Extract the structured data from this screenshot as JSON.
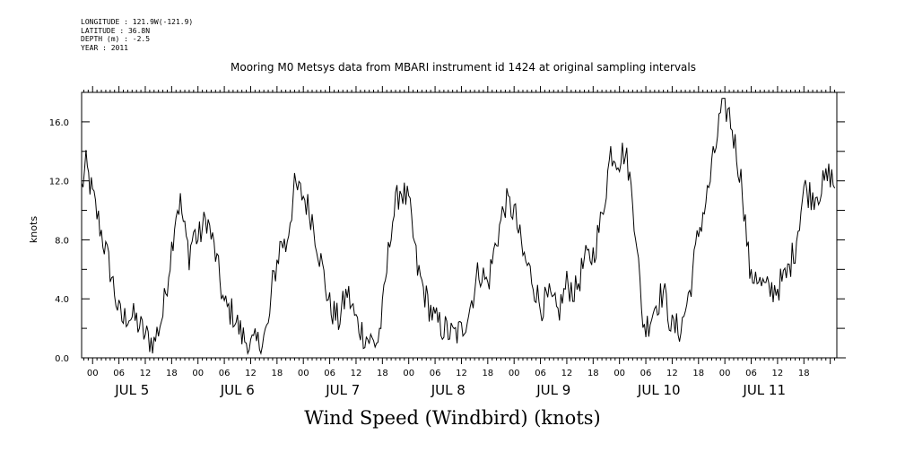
{
  "header": {
    "longitude": "LONGITUDE : 121.9W(-121.9)",
    "latitude": "LATITUDE : 36.8N",
    "depth": "DEPTH (m) : -2.5",
    "year": "YEAR : 2011"
  },
  "chart_data": {
    "type": "line",
    "title": "Mooring M0 Metsys data from MBARI instrument id 1424 at original sampling intervals",
    "xlabel": "Wind Speed (Windbird) (knots)",
    "ylabel": "knots",
    "ylim": [
      0,
      18
    ],
    "xlim": [
      -2.5,
      169.5
    ],
    "x_unit": "hours since JUL 5 00:00",
    "yticks": [
      0,
      4,
      8,
      12,
      16
    ],
    "ytick_labels": [
      "0.0",
      "4.0",
      "8.0",
      "12.0",
      "16.0"
    ],
    "hour_ticks": [
      0,
      6,
      12,
      18
    ],
    "hour_tick_labels": [
      "00",
      "06",
      "12",
      "18"
    ],
    "day_labels": [
      "JUL 5",
      "JUL 6",
      "JUL 7",
      "JUL 8",
      "JUL 9",
      "JUL 10",
      "JUL 11"
    ],
    "grid": false,
    "series": [
      {
        "color": "#000000",
        "x": [
          -2.5,
          -1.5,
          0,
          2,
          4,
          6,
          7,
          8,
          10,
          12,
          14,
          16,
          18,
          19,
          20,
          21,
          22,
          23,
          24,
          26,
          28,
          30,
          32,
          34,
          36,
          38,
          40,
          41,
          42,
          43,
          44,
          46,
          48,
          50,
          52,
          54,
          56,
          58,
          60,
          62,
          64,
          65,
          66,
          67,
          68,
          70,
          72,
          74,
          76,
          78,
          80,
          82,
          84,
          86,
          88,
          90,
          92,
          94,
          96,
          98,
          100,
          102,
          104,
          106,
          108,
          110,
          112,
          114,
          116,
          118,
          120,
          121,
          122,
          124,
          125,
          126,
          128,
          130,
          132,
          134,
          136,
          138,
          140,
          142,
          143,
          144,
          145,
          146,
          148,
          149,
          150,
          151,
          152,
          154,
          156,
          158,
          160,
          162,
          164,
          166,
          168,
          169
        ],
        "y": [
          11.5,
          13.0,
          11.0,
          8.5,
          6.0,
          3.0,
          2.5,
          3.0,
          2.5,
          1.5,
          1.0,
          3.0,
          7.5,
          10.0,
          10.5,
          8.5,
          7.0,
          8.5,
          8.0,
          9.5,
          7.0,
          3.5,
          3.0,
          1.5,
          0.8,
          1.0,
          2.0,
          5.0,
          6.5,
          8.0,
          7.5,
          11.5,
          11.0,
          9.5,
          6.5,
          3.5,
          2.5,
          4.5,
          2.5,
          1.5,
          1.0,
          1.2,
          3.0,
          6.0,
          9.0,
          11.5,
          10.5,
          6.0,
          4.0,
          2.5,
          2.0,
          1.5,
          1.8,
          3.5,
          6.0,
          5.0,
          8.0,
          10.5,
          10.0,
          7.0,
          5.5,
          3.5,
          4.0,
          3.0,
          5.0,
          4.5,
          6.5,
          7.0,
          9.5,
          14.0,
          13.5,
          14.0,
          13.0,
          8.0,
          3.0,
          2.0,
          3.5,
          4.5,
          2.0,
          2.0,
          4.5,
          8.5,
          11.0,
          14.5,
          16.5,
          17.0,
          16.5,
          15.0,
          11.5,
          8.0,
          5.0,
          6.0,
          5.0,
          4.5,
          4.8,
          5.5,
          7.5,
          11.5,
          11.0,
          11.5,
          12.5,
          11.5
        ]
      }
    ]
  }
}
